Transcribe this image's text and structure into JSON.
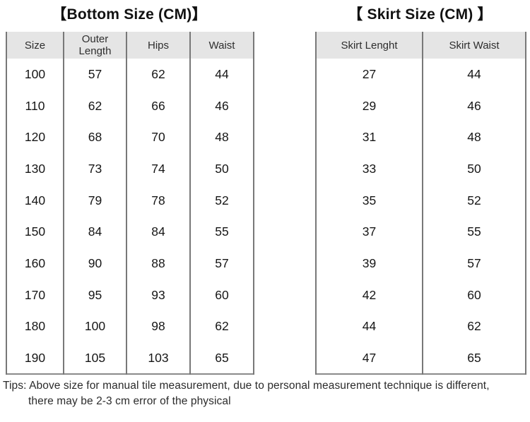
{
  "page": {
    "background": "#ffffff",
    "header_bg": "#e5e5e5",
    "border_color": "#787878",
    "text_color": "#161616"
  },
  "bottom_table": {
    "title": "【Bottom Size (CM)】",
    "columns": [
      "Size",
      "Outer Length",
      "Hips",
      "Waist"
    ],
    "rows": [
      [
        "100",
        "57",
        "62",
        "44"
      ],
      [
        "110",
        "62",
        "66",
        "46"
      ],
      [
        "120",
        "68",
        "70",
        "48"
      ],
      [
        "130",
        "73",
        "74",
        "50"
      ],
      [
        "140",
        "79",
        "78",
        "52"
      ],
      [
        "150",
        "84",
        "84",
        "55"
      ],
      [
        "160",
        "90",
        "88",
        "57"
      ],
      [
        "170",
        "95",
        "93",
        "60"
      ],
      [
        "180",
        "100",
        "98",
        "62"
      ],
      [
        "190",
        "105",
        "103",
        "65"
      ]
    ]
  },
  "skirt_table": {
    "title": "【 Skirt Size (CM) 】",
    "columns": [
      "Skirt Lenght",
      "Skirt Waist"
    ],
    "rows": [
      [
        "27",
        "44"
      ],
      [
        "29",
        "46"
      ],
      [
        "31",
        "48"
      ],
      [
        "33",
        "50"
      ],
      [
        "35",
        "52"
      ],
      [
        "37",
        "55"
      ],
      [
        "39",
        "57"
      ],
      [
        "42",
        "60"
      ],
      [
        "44",
        "62"
      ],
      [
        "47",
        "65"
      ]
    ]
  },
  "tips": {
    "line1": "Tips: Above size for manual tile measurement, due to personal measurement technique is different,",
    "line2": "there may be 2-3 cm error of the physical"
  }
}
